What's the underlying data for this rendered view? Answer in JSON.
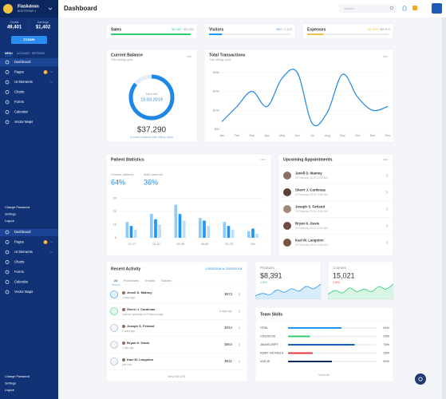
{
  "sidebar": {
    "brand": "FlatAdmin",
    "tagline": "BOOTSTRAP 4",
    "stats": [
      {
        "label": "Credits",
        "value": "49,401"
      },
      {
        "label": "Earnings",
        "value": "$1,402"
      }
    ],
    "create": "Create",
    "tabs": [
      "MENU",
      "ACCOUNT",
      "SETTINGS"
    ],
    "menu": [
      {
        "label": "Dashboard"
      },
      {
        "label": "Pages",
        "badge": "6"
      },
      {
        "label": "UI Elements"
      },
      {
        "label": "Charts"
      },
      {
        "label": "Forms"
      },
      {
        "label": "Calendar"
      },
      {
        "label": "Vector Maps"
      }
    ],
    "account": [
      "Change Password",
      "Settings",
      "Logout"
    ],
    "menu_2": [
      {
        "label": "Dashboard"
      },
      {
        "label": "Pages",
        "badge": "6"
      },
      {
        "label": "UI Elements"
      },
      {
        "label": "Charts"
      },
      {
        "label": "Forms"
      },
      {
        "label": "Calendar"
      },
      {
        "label": "Vector Maps"
      }
    ],
    "account_2": [
      "Change Password",
      "Settings",
      "Logout"
    ]
  },
  "header": {
    "title": "Dashboard",
    "search": "Search"
  },
  "stat_cards": [
    {
      "title": "Sales",
      "value": "$3,181",
      "target": "/ $3,250",
      "progress": 98,
      "color": "#2ecc71"
    },
    {
      "title": "Visitors",
      "value": "340",
      "target": "/ 2,122",
      "progress": 16,
      "color": "#2196f3"
    },
    {
      "title": "Expenses",
      "value": "$1,995",
      "target": "/ $9,870",
      "progress": 20,
      "color": "#f5c242"
    }
  ],
  "balance": {
    "title": "Current Balance",
    "subtitle": "This billing cycle",
    "next_label": "Next bill",
    "next_date": "15.03.2019",
    "progress": 86,
    "amount": "$37,290",
    "caption": "Current balance this billing cycle"
  },
  "transactions": {
    "type": "line",
    "title": "Total Transactions",
    "subtitle": "This billing cycle",
    "x": [
      "Jan",
      "Feb",
      "Mar",
      "Apr",
      "May",
      "Jun",
      "Jul",
      "Aug",
      "Sep",
      "Oct",
      "Nov",
      "Dec"
    ],
    "values": [
      4000,
      12000,
      20000,
      12000,
      27000,
      30000,
      3000,
      9000,
      29000,
      17000,
      10000,
      12000
    ],
    "color": "#1e88e5",
    "ylim": [
      0,
      32000
    ],
    "yticks": [
      {
        "value": 0,
        "label": "$0k"
      },
      {
        "value": 10000,
        "label": "$10k"
      },
      {
        "value": 20000,
        "label": "$20k"
      },
      {
        "value": 30000,
        "label": "$30k"
      }
    ],
    "grid": true
  },
  "patients": {
    "type": "bar",
    "title": "Patient Statistics",
    "female_label": "Female patients",
    "female_value": "64%",
    "male_label": "Male patients",
    "male_value": "36%",
    "categories": [
      "10-17",
      "18-32",
      "33-45",
      "46-60",
      "61-75",
      "80+"
    ],
    "series": [
      {
        "color": "#90caf9",
        "values": [
          12,
          18,
          25,
          15,
          12,
          5
        ]
      },
      {
        "color": "#2196f3",
        "values": [
          9,
          14,
          18,
          13,
          9,
          7
        ]
      },
      {
        "color": "#bbdefb",
        "values": [
          6,
          10,
          13,
          9,
          6,
          3
        ]
      }
    ],
    "ylim": [
      0,
      32
    ],
    "yticks": [
      0,
      10,
      20,
      30
    ],
    "grid": true
  },
  "appointments": {
    "title": "Upcoming Appointments",
    "items": [
      {
        "name": "Jenell D. Matney",
        "date": "20 February 2019 10:00 AM"
      },
      {
        "name": "Sherri J. Cardenas",
        "date": "20 February 2019 10:00 AM"
      },
      {
        "name": "Joseph S. Ferland",
        "date": "20 February 2019 10:00 AM"
      },
      {
        "name": "Bryan K. Davis",
        "date": "20 February 2019 10:00 AM"
      },
      {
        "name": "Kaci M. Langston",
        "date": "20 February 2019 10:00 AM"
      }
    ]
  },
  "activity": {
    "title": "Recent Activity",
    "range": "13/03/2018 to 20/03/2018",
    "tabs": [
      "All",
      "Purchases",
      "Emails",
      "Guides"
    ],
    "items": [
      {
        "name": "Jenell D. Matney",
        "sub": "4 days ago",
        "right": "$573"
      },
      {
        "name": "Sherri J. Cardenas",
        "sub": "Improve spacings on Projects page",
        "right": "5 days ago"
      },
      {
        "name": "Joseph S. Ferland",
        "sub": "2 days ago",
        "right": "$244"
      },
      {
        "name": "Bryan K. Davis",
        "sub": "1 day ago",
        "right": "$664"
      },
      {
        "name": "Kaci M. Langston",
        "sub": "just now",
        "right": "$631"
      }
    ],
    "footer": "View All (24)"
  },
  "products": {
    "title": "Products",
    "value": "$8,391",
    "change": "1.9%",
    "trend": [
      3,
      5,
      4,
      8,
      6,
      9,
      7,
      11,
      9,
      13
    ],
    "color": "#2196f3"
  },
  "courses": {
    "title": "Courses",
    "value": "15,021",
    "change": "1.6%",
    "trend": [
      4,
      7,
      5,
      9,
      6,
      8,
      6,
      10,
      8,
      12
    ],
    "color": "#2ecc71"
  },
  "skills": {
    "title": "Team Skills",
    "items": [
      {
        "name": "HTML",
        "value": 61,
        "label": "61%",
        "color": "#2196f3"
      },
      {
        "name": "CSS/SCSS",
        "value": 25,
        "label": "25%",
        "color": "#2ecc71"
      },
      {
        "name": "JAVASCRIPT",
        "value": 76,
        "label": "76%",
        "color": "#1565c0"
      },
      {
        "name": "RUBY ON RAILS",
        "value": 28,
        "label": "28%",
        "color": "#e53935"
      },
      {
        "name": "VUEJS",
        "value": 50,
        "label": "50%",
        "color": "#0d2a6b"
      }
    ],
    "footer": "View All"
  }
}
